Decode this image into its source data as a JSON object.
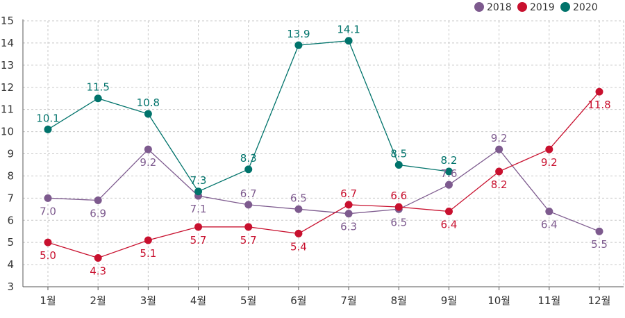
{
  "chart_data": {
    "type": "line",
    "categories": [
      "1월",
      "2월",
      "3월",
      "4월",
      "5월",
      "6월",
      "7월",
      "8월",
      "9월",
      "10월",
      "11월",
      "12월"
    ],
    "ylim": [
      3,
      15
    ],
    "yticks": [
      3,
      4,
      5,
      6,
      7,
      8,
      9,
      10,
      11,
      12,
      13,
      14,
      15
    ],
    "grid": true,
    "legend_position": "top-right",
    "series": [
      {
        "name": "2018",
        "color": "#7d5a8e",
        "values": [
          7.0,
          6.9,
          9.2,
          7.1,
          6.7,
          6.5,
          6.3,
          6.5,
          7.6,
          9.2,
          6.4,
          5.5
        ],
        "labels": [
          "7.0",
          "6.9",
          "9.2",
          "7.1",
          "6.7",
          "6.5",
          "6.3",
          "6.5",
          "7.6",
          "9.2",
          "6.4",
          "5.5"
        ]
      },
      {
        "name": "2019",
        "color": "#c8102e",
        "values": [
          5.0,
          4.3,
          5.1,
          5.7,
          5.7,
          5.4,
          6.7,
          6.6,
          6.4,
          8.2,
          9.2,
          11.8
        ],
        "labels": [
          "5.0",
          "4.3",
          "5.1",
          "5.7",
          "5.7",
          "5.4",
          "6.7",
          "6.6",
          "6.4",
          "8.2",
          "9.2",
          "11.8"
        ]
      },
      {
        "name": "2020",
        "color": "#00736b",
        "values": [
          10.1,
          11.5,
          10.8,
          7.3,
          8.3,
          13.9,
          14.1,
          8.5,
          8.2,
          null,
          null,
          null
        ],
        "labels": [
          "10.1",
          "11.5",
          "10.8",
          "7.3",
          "8.3",
          "13.9",
          "14.1",
          "8.5",
          "8.2",
          null,
          null,
          null
        ]
      }
    ]
  }
}
